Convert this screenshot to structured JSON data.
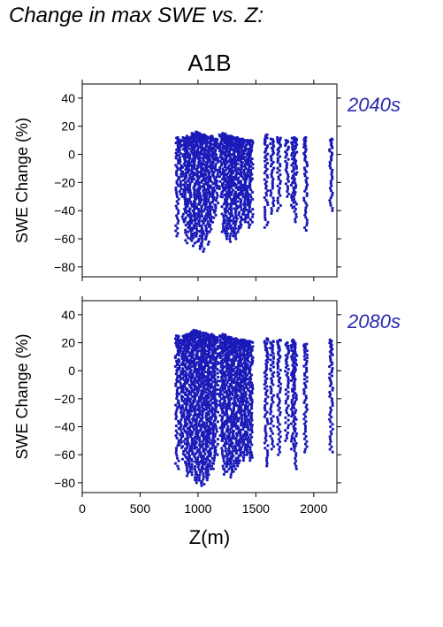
{
  "page_title": "Change in max SWE vs. Z:",
  "scenario": "A1B",
  "colors": {
    "points": "#1a1ab8",
    "period_label": "#2a2ab0",
    "axes": "#000000"
  },
  "chart_data": [
    {
      "type": "scatter",
      "panel_label": "2040s",
      "ylabel": "SWE Change (%)",
      "xlabel": "",
      "xlim": [
        0,
        2200
      ],
      "ylim": [
        -87,
        50
      ],
      "xticks": [
        0,
        500,
        1000,
        1500,
        2000
      ],
      "yticks": [
        -80,
        -60,
        -40,
        -20,
        0,
        20,
        40
      ],
      "xtick_labels_shown": false,
      "grid": false,
      "columns": [
        {
          "x": 820,
          "min": -58,
          "max": 12
        },
        {
          "x": 850,
          "min": -30,
          "max": 10
        },
        {
          "x": 880,
          "min": -48,
          "max": 12
        },
        {
          "x": 900,
          "min": -63,
          "max": 13
        },
        {
          "x": 920,
          "min": -55,
          "max": 12
        },
        {
          "x": 940,
          "min": -60,
          "max": 13
        },
        {
          "x": 960,
          "min": -65,
          "max": 15
        },
        {
          "x": 980,
          "min": -58,
          "max": 16
        },
        {
          "x": 1000,
          "min": -62,
          "max": 15
        },
        {
          "x": 1020,
          "min": -67,
          "max": 14
        },
        {
          "x": 1040,
          "min": -69,
          "max": 13
        },
        {
          "x": 1060,
          "min": -60,
          "max": 14
        },
        {
          "x": 1080,
          "min": -64,
          "max": 13
        },
        {
          "x": 1100,
          "min": -55,
          "max": 12
        },
        {
          "x": 1120,
          "min": -50,
          "max": 13
        },
        {
          "x": 1140,
          "min": -45,
          "max": 12
        },
        {
          "x": 1160,
          "min": -40,
          "max": 11
        },
        {
          "x": 1200,
          "min": -30,
          "max": 14
        },
        {
          "x": 1220,
          "min": -55,
          "max": 15
        },
        {
          "x": 1240,
          "min": -58,
          "max": 14
        },
        {
          "x": 1260,
          "min": -60,
          "max": 13
        },
        {
          "x": 1280,
          "min": -62,
          "max": 13
        },
        {
          "x": 1300,
          "min": -58,
          "max": 12
        },
        {
          "x": 1320,
          "min": -60,
          "max": 12
        },
        {
          "x": 1340,
          "min": -55,
          "max": 12
        },
        {
          "x": 1360,
          "min": -52,
          "max": 11
        },
        {
          "x": 1380,
          "min": -50,
          "max": 11
        },
        {
          "x": 1400,
          "min": -48,
          "max": 10
        },
        {
          "x": 1420,
          "min": -45,
          "max": 10
        },
        {
          "x": 1440,
          "min": -52,
          "max": 10
        },
        {
          "x": 1460,
          "min": -50,
          "max": 10
        },
        {
          "x": 1590,
          "min": -52,
          "max": 14
        },
        {
          "x": 1640,
          "min": -42,
          "max": 11
        },
        {
          "x": 1700,
          "min": -40,
          "max": 12
        },
        {
          "x": 1770,
          "min": -30,
          "max": 10
        },
        {
          "x": 1820,
          "min": -38,
          "max": 12
        },
        {
          "x": 1840,
          "min": -48,
          "max": 11
        },
        {
          "x": 1930,
          "min": -54,
          "max": 12
        },
        {
          "x": 2150,
          "min": -40,
          "max": 11
        }
      ]
    },
    {
      "type": "scatter",
      "panel_label": "2080s",
      "ylabel": "SWE Change (%)",
      "xlabel": "Z(m)",
      "xlim": [
        0,
        2200
      ],
      "ylim": [
        -87,
        50
      ],
      "xticks": [
        0,
        500,
        1000,
        1500,
        2000
      ],
      "yticks": [
        -80,
        -60,
        -40,
        -20,
        0,
        20,
        40
      ],
      "xtick_labels_shown": true,
      "grid": false,
      "columns": [
        {
          "x": 820,
          "min": -70,
          "max": 25
        },
        {
          "x": 850,
          "min": -55,
          "max": 22
        },
        {
          "x": 880,
          "min": -65,
          "max": 25
        },
        {
          "x": 900,
          "min": -75,
          "max": 26
        },
        {
          "x": 920,
          "min": -72,
          "max": 25
        },
        {
          "x": 940,
          "min": -70,
          "max": 27
        },
        {
          "x": 960,
          "min": -78,
          "max": 28
        },
        {
          "x": 980,
          "min": -74,
          "max": 29
        },
        {
          "x": 1000,
          "min": -80,
          "max": 28
        },
        {
          "x": 1020,
          "min": -82,
          "max": 27
        },
        {
          "x": 1040,
          "min": -81,
          "max": 26
        },
        {
          "x": 1060,
          "min": -76,
          "max": 27
        },
        {
          "x": 1080,
          "min": -78,
          "max": 26
        },
        {
          "x": 1100,
          "min": -72,
          "max": 25
        },
        {
          "x": 1120,
          "min": -70,
          "max": 26
        },
        {
          "x": 1140,
          "min": -66,
          "max": 25
        },
        {
          "x": 1160,
          "min": -60,
          "max": 24
        },
        {
          "x": 1200,
          "min": -50,
          "max": 25
        },
        {
          "x": 1220,
          "min": -70,
          "max": 26
        },
        {
          "x": 1240,
          "min": -74,
          "max": 25
        },
        {
          "x": 1260,
          "min": -72,
          "max": 24
        },
        {
          "x": 1280,
          "min": -76,
          "max": 24
        },
        {
          "x": 1300,
          "min": -70,
          "max": 23
        },
        {
          "x": 1320,
          "min": -72,
          "max": 23
        },
        {
          "x": 1340,
          "min": -68,
          "max": 23
        },
        {
          "x": 1360,
          "min": -66,
          "max": 22
        },
        {
          "x": 1380,
          "min": -64,
          "max": 22
        },
        {
          "x": 1400,
          "min": -62,
          "max": 22
        },
        {
          "x": 1420,
          "min": -60,
          "max": 21
        },
        {
          "x": 1440,
          "min": -64,
          "max": 21
        },
        {
          "x": 1460,
          "min": -62,
          "max": 21
        },
        {
          "x": 1590,
          "min": -68,
          "max": 23
        },
        {
          "x": 1640,
          "min": -56,
          "max": 21
        },
        {
          "x": 1700,
          "min": -60,
          "max": 22
        },
        {
          "x": 1770,
          "min": -50,
          "max": 20
        },
        {
          "x": 1820,
          "min": -56,
          "max": 22
        },
        {
          "x": 1840,
          "min": -70,
          "max": 20
        },
        {
          "x": 1930,
          "min": -58,
          "max": 19
        },
        {
          "x": 2150,
          "min": -58,
          "max": 22
        }
      ]
    }
  ]
}
